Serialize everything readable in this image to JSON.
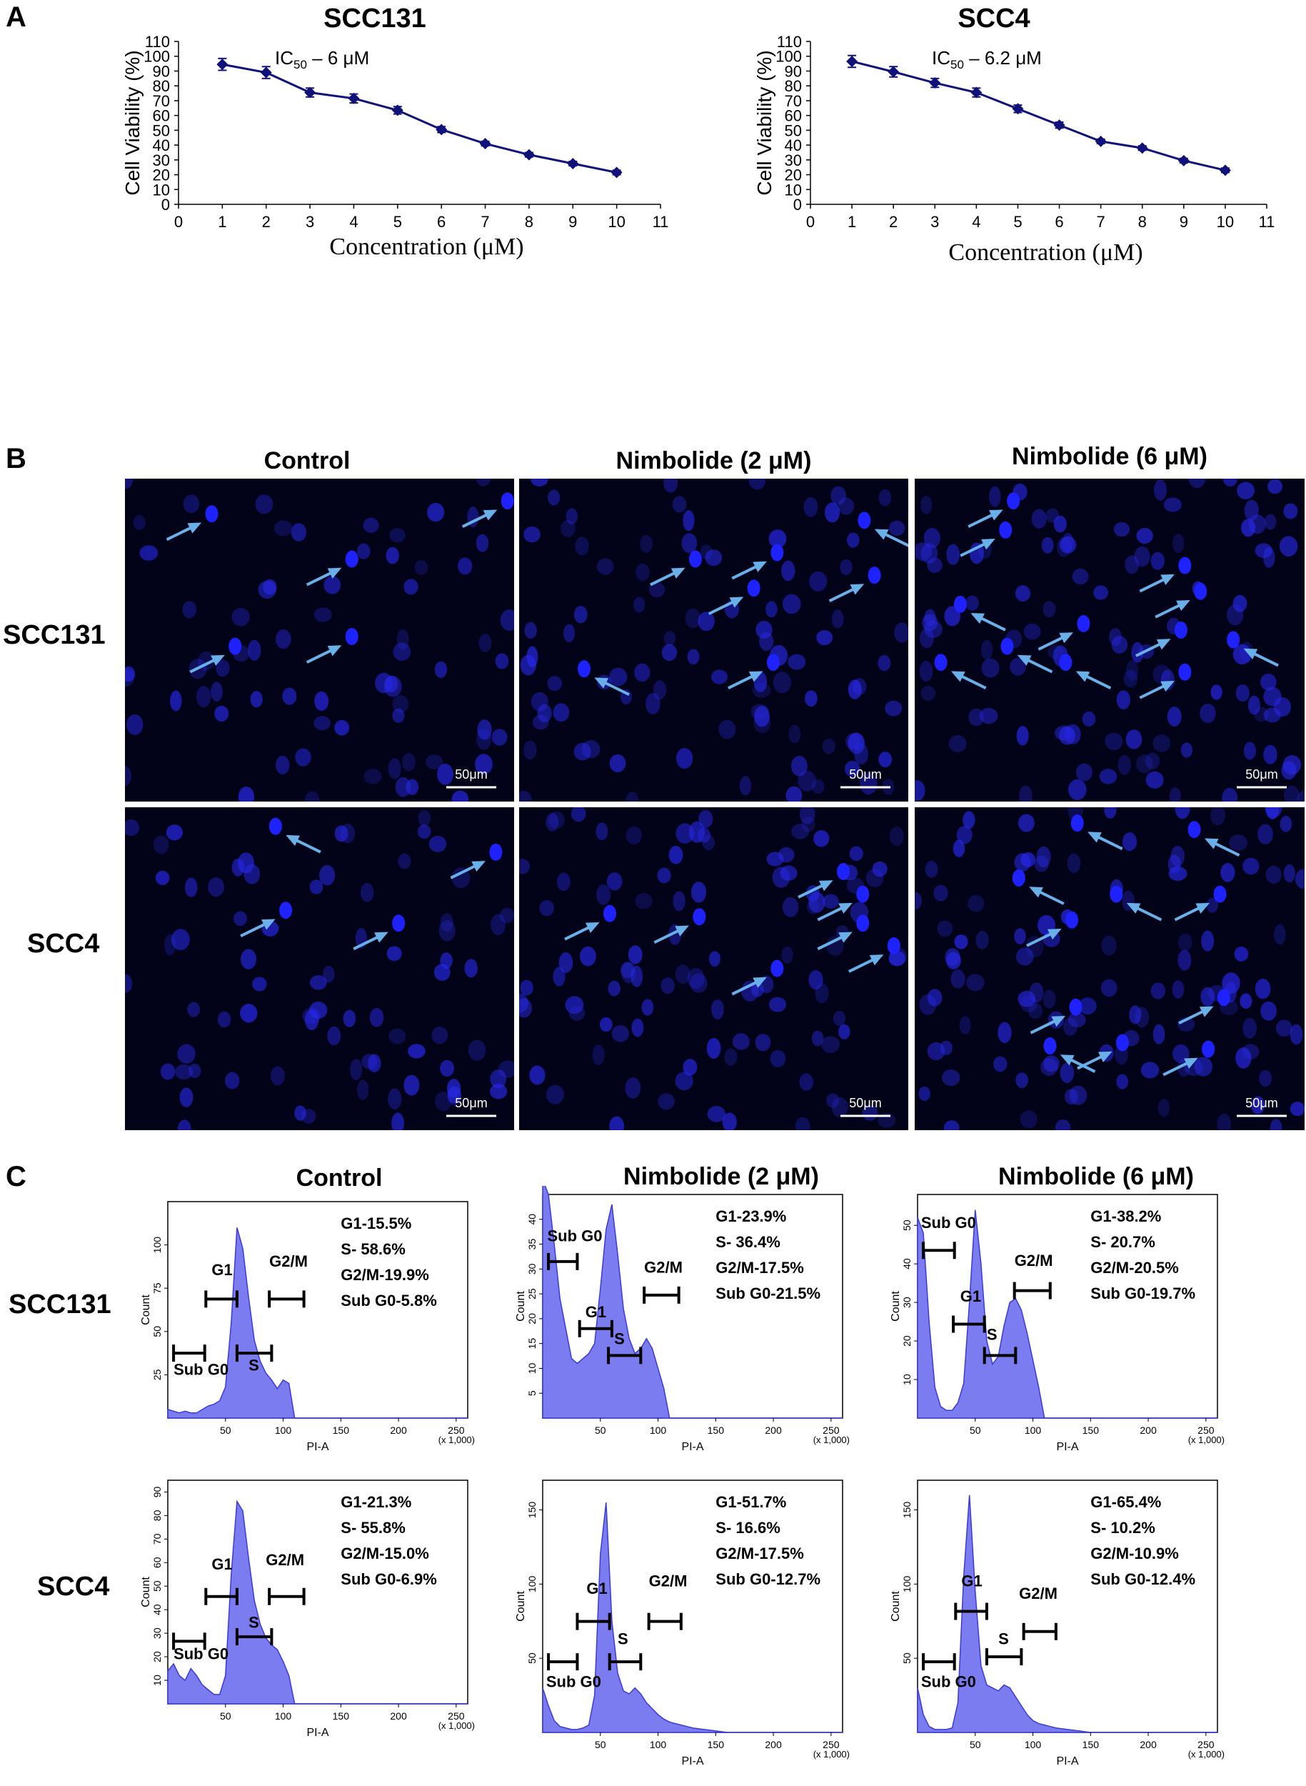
{
  "panels": {
    "a": {
      "letter": "A"
    },
    "b": {
      "letter": "B",
      "columns": [
        "Control",
        "Nimbolide (2 μM)",
        "Nimbolide (6 μM)"
      ],
      "rows": [
        "SCC131",
        "SCC4"
      ],
      "scale_bar": "50μm"
    },
    "c": {
      "letter": "C",
      "columns": [
        "Control",
        "Nimbolide (2 μM)",
        "Nimbolide (6 μM)"
      ],
      "rows": [
        "SCC131",
        "SCC4"
      ],
      "gate_labels": {
        "sub_g0": "Sub G0",
        "g1": "G1",
        "s": "S",
        "g2m": "G2/M"
      },
      "xlabel": "PI-A",
      "x_unit": "(x 1,000)",
      "ylabel": "Count"
    }
  },
  "chart_data": [
    {
      "type": "line",
      "title": "SCC131",
      "annotation": "IC50 – 6 μM",
      "annotation_main": "IC",
      "annotation_sub": "50",
      "annotation_rest": " – 6 μM",
      "xlabel": "Concentration (μM)",
      "ylabel": "Cell Viability (%)",
      "x": [
        1,
        2,
        3,
        4,
        5,
        6,
        7,
        8,
        9,
        10
      ],
      "y": [
        94.5,
        89,
        75.5,
        71.5,
        63.5,
        50.5,
        41,
        33.5,
        27.5,
        21.5
      ],
      "error": [
        4,
        4,
        3,
        3,
        2.5,
        2,
        1.5,
        1.5,
        1.5,
        1.5
      ],
      "xlim": [
        0,
        11
      ],
      "ylim": [
        0,
        110
      ],
      "xticks": [
        "0",
        "1",
        "2",
        "3",
        "4",
        "5",
        "6",
        "7",
        "8",
        "9",
        "10",
        "11"
      ],
      "yticks": [
        "0",
        "10",
        "20",
        "30",
        "40",
        "50",
        "60",
        "70",
        "80",
        "90",
        "100",
        "110"
      ],
      "color": "#11117a"
    },
    {
      "type": "line",
      "title": "SCC4",
      "annotation": "IC50 – 6.2 μM",
      "annotation_main": "IC",
      "annotation_sub": "50",
      "annotation_rest": " – 6.2 μM",
      "xlabel": "Concentration (μM)",
      "ylabel": "Cell Viability (%)",
      "x": [
        1,
        2,
        3,
        4,
        5,
        6,
        7,
        8,
        9,
        10
      ],
      "y": [
        96.5,
        89.5,
        82,
        75.5,
        64.5,
        53.5,
        42.5,
        38,
        29.5,
        23
      ],
      "error": [
        4,
        3.5,
        3,
        3,
        2.5,
        2,
        1.5,
        1.5,
        1.5,
        1.5
      ],
      "xlim": [
        0,
        11
      ],
      "ylim": [
        0,
        110
      ],
      "xticks": [
        "0",
        "1",
        "2",
        "3",
        "4",
        "5",
        "6",
        "7",
        "8",
        "9",
        "10",
        "11"
      ],
      "yticks": [
        "0",
        "10",
        "20",
        "30",
        "40",
        "50",
        "60",
        "70",
        "80",
        "90",
        "100",
        "110"
      ],
      "color": "#11117a"
    },
    {
      "type": "area",
      "title": "SCC131 Control",
      "stats": [
        "G1-15.5%",
        "S- 58.6%",
        "G2/M-19.9%",
        "Sub G0-5.8%"
      ],
      "x": [
        0,
        5,
        10,
        15,
        20,
        25,
        30,
        35,
        40,
        45,
        50,
        55,
        60,
        65,
        70,
        75,
        80,
        85,
        90,
        95,
        100,
        105,
        110,
        115,
        120,
        130,
        140,
        150,
        160,
        180,
        200,
        220,
        240,
        260
      ],
      "y": [
        5,
        4,
        3,
        4,
        3,
        3,
        5,
        7,
        8,
        10,
        18,
        55,
        110,
        98,
        70,
        45,
        33,
        26,
        22,
        17,
        22,
        20,
        0,
        0,
        0,
        0,
        0,
        0,
        0,
        0,
        0,
        0,
        0,
        0
      ],
      "ylim": [
        0,
        125
      ],
      "yticks": [
        "25",
        "50",
        "75",
        "100"
      ]
    },
    {
      "type": "area",
      "title": "SCC131 Nimbolide (2 μM)",
      "stats": [
        "G1-23.9%",
        "S- 36.4%",
        "G2/M-17.5%",
        "Sub G0-21.5%"
      ],
      "x": [
        0,
        5,
        10,
        15,
        20,
        25,
        30,
        35,
        40,
        45,
        50,
        55,
        60,
        65,
        70,
        75,
        80,
        85,
        90,
        95,
        100,
        105,
        110,
        115,
        120,
        130,
        140,
        150,
        160,
        180,
        200,
        220,
        240,
        260
      ],
      "y": [
        48,
        45,
        35,
        24,
        18,
        12,
        11,
        12,
        13,
        15,
        26,
        38,
        43,
        33,
        22,
        16,
        13,
        14,
        16,
        14,
        10,
        6,
        0,
        0,
        0,
        0,
        0,
        0,
        0,
        0,
        0,
        0,
        0,
        0
      ],
      "ylim": [
        0,
        45
      ],
      "yticks": [
        "5",
        "10",
        "15",
        "20",
        "25",
        "30",
        "35",
        "40"
      ]
    },
    {
      "type": "area",
      "title": "SCC131 Nimbolide (6 μM)",
      "stats": [
        "G1-38.2%",
        "S- 20.7%",
        "G2/M-20.5%",
        "Sub G0-19.7%"
      ],
      "x": [
        0,
        5,
        10,
        15,
        20,
        25,
        30,
        35,
        40,
        45,
        50,
        55,
        60,
        65,
        70,
        75,
        80,
        85,
        90,
        95,
        100,
        105,
        110,
        115,
        120,
        130,
        140,
        150,
        160,
        180,
        200,
        220,
        240,
        260
      ],
      "y": [
        52,
        48,
        25,
        8,
        3,
        2,
        2,
        4,
        9,
        30,
        54,
        40,
        20,
        14,
        16,
        24,
        30,
        31,
        28,
        22,
        15,
        8,
        0,
        0,
        0,
        0,
        0,
        0,
        0,
        0,
        0,
        0,
        0,
        0
      ],
      "ylim": [
        0,
        58
      ],
      "yticks": [
        "10",
        "20",
        "30",
        "40",
        "50"
      ]
    },
    {
      "type": "area",
      "title": "SCC4 Control",
      "stats": [
        "G1-21.3%",
        "S- 55.8%",
        "G2/M-15.0%",
        "Sub G0-6.9%"
      ],
      "x": [
        0,
        5,
        10,
        15,
        20,
        25,
        30,
        35,
        40,
        45,
        50,
        55,
        60,
        65,
        70,
        75,
        80,
        85,
        90,
        95,
        100,
        105,
        110,
        115,
        120,
        130,
        140,
        150,
        160,
        180,
        200,
        220,
        240,
        260
      ],
      "y": [
        14,
        17,
        12,
        10,
        15,
        12,
        8,
        6,
        4,
        4,
        12,
        55,
        86,
        82,
        62,
        44,
        34,
        28,
        25,
        23,
        18,
        12,
        0,
        0,
        0,
        0,
        0,
        0,
        0,
        0,
        0,
        0,
        0,
        0
      ],
      "ylim": [
        0,
        95
      ],
      "yticks": [
        "10",
        "20",
        "30",
        "40",
        "50",
        "60",
        "70",
        "80",
        "90"
      ]
    },
    {
      "type": "area",
      "title": "SCC4 Nimbolide (2 μM)",
      "stats": [
        "G1-51.7%",
        "S- 16.6%",
        "G2/M-17.5%",
        "Sub G0-12.7%"
      ],
      "x": [
        0,
        5,
        10,
        15,
        20,
        25,
        30,
        35,
        40,
        45,
        50,
        55,
        60,
        65,
        70,
        75,
        80,
        85,
        90,
        95,
        100,
        105,
        110,
        115,
        120,
        130,
        140,
        150,
        160,
        180,
        200,
        220,
        240,
        260
      ],
      "y": [
        30,
        18,
        8,
        4,
        3,
        2,
        2,
        3,
        5,
        25,
        120,
        155,
        75,
        40,
        28,
        26,
        30,
        26,
        20,
        16,
        12,
        9,
        7,
        6,
        5,
        3,
        2,
        1,
        0,
        0,
        0,
        0,
        0,
        0
      ],
      "ylim": [
        0,
        170
      ],
      "yticks": [
        "50",
        "100",
        "150"
      ]
    },
    {
      "type": "area",
      "title": "SCC4 Nimbolide (6 μM)",
      "stats": [
        "G1-65.4%",
        "S- 10.2%",
        "G2/M-10.9%",
        "Sub G0-12.4%"
      ],
      "x": [
        0,
        5,
        10,
        15,
        20,
        25,
        30,
        35,
        40,
        45,
        50,
        55,
        60,
        65,
        70,
        75,
        80,
        85,
        90,
        95,
        100,
        105,
        110,
        115,
        120,
        130,
        140,
        150,
        160,
        180,
        200,
        220,
        240,
        260
      ],
      "y": [
        30,
        12,
        4,
        2,
        2,
        2,
        3,
        20,
        105,
        160,
        95,
        45,
        32,
        30,
        28,
        32,
        30,
        24,
        18,
        12,
        8,
        6,
        5,
        4,
        3,
        2,
        1,
        0,
        0,
        0,
        0,
        0,
        0,
        0
      ],
      "ylim": [
        0,
        170
      ],
      "yticks": [
        "50",
        "100",
        "150"
      ]
    }
  ]
}
